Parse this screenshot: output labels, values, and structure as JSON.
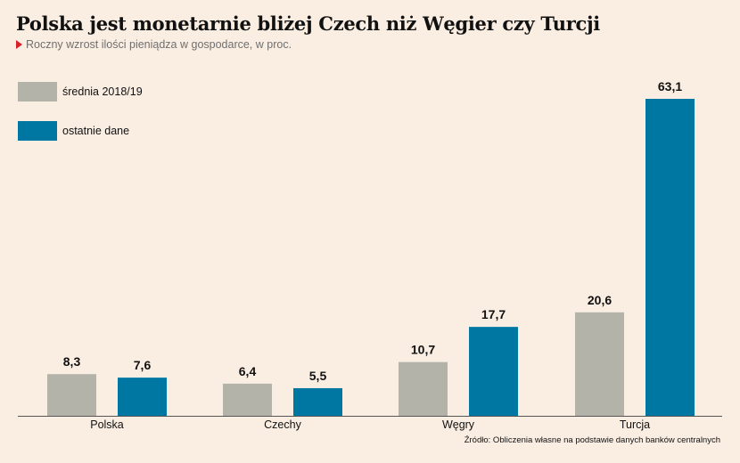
{
  "header": {
    "title": "Polska jest monetarnie bliżej Czech niż Węgier czy Turcji",
    "subtitle": "Roczny wzrost ilości pieniądza w gospodarce, w proc."
  },
  "legend": [
    {
      "label": "średnia 2018/19",
      "color": "#b4b3a9"
    },
    {
      "label": "ostatnie dane",
      "color": "#0077a3"
    }
  ],
  "source": "Źródło: Obliczenia własne na podstawie danych banków centralnych",
  "chart_data": {
    "type": "bar",
    "categories": [
      "Polska",
      "Czechy",
      "Węgry",
      "Turcja"
    ],
    "series": [
      {
        "name": "średnia 2018/19",
        "values": [
          8.3,
          6.4,
          10.7,
          20.6
        ],
        "labels": [
          "8,3",
          "6,4",
          "10,7",
          "20,6"
        ],
        "color": "#b4b3a9"
      },
      {
        "name": "ostatnie dane",
        "values": [
          7.6,
          5.5,
          17.7,
          63.1
        ],
        "labels": [
          "7,6",
          "5,5",
          "17,7",
          "63,1"
        ],
        "color": "#0077a3"
      }
    ],
    "title": "Polska jest monetarnie bliżej Czech niż Węgier czy Turcji",
    "subtitle": "Roczny wzrost ilości pieniądza w gospodarce, w proc.",
    "xlabel": "",
    "ylabel": "",
    "ylim": [
      0,
      63.1
    ],
    "grid": false,
    "legend_position": "top-left"
  }
}
